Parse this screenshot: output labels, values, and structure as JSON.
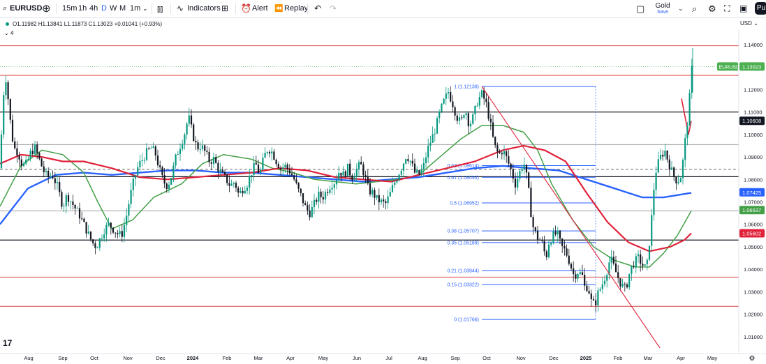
{
  "toolbar": {
    "symbol": "EURUSD",
    "intervals": [
      "15m",
      "1h",
      "4h",
      "D",
      "W",
      "M",
      "1m"
    ],
    "active_interval": "D",
    "indicators_label": "Indicators",
    "alert_label": "Alert",
    "replay_label": "Replay",
    "gold_label": "Gold",
    "save_label": "Save",
    "avatar_text": "Pu"
  },
  "legend": {
    "ohlc": "O1.11982 H1.13841 L1.11873 C1.13023 +0.01041 (+0.93%)",
    "indicator_count": "4",
    "currency": "USD"
  },
  "tv_logo": "17",
  "colors": {
    "up": "#089981",
    "down": "#131722",
    "ma_fast": "#131722",
    "ma_green": "#43a047",
    "ma_red": "#e0223a",
    "ma_blue": "#2962ff",
    "fib": "#2962ff",
    "support_red": "#e05a5a",
    "support_black": "#131722",
    "support_grey": "#9e9e9e",
    "trendline": "#e0223a",
    "price_tag": "#4caf50"
  },
  "chart_data": {
    "type": "candlestick",
    "symbol": "EURUSD",
    "timeframe": "1D",
    "ylim": [
      1.0025,
      1.1465
    ],
    "y_ticks": [
      "1.14000",
      "1.13000",
      "1.12000",
      "1.11000",
      "1.10000",
      "1.09000",
      "1.08000",
      "1.07000",
      "1.06000",
      "1.05000",
      "1.04000",
      "1.03000",
      "1.02000",
      "1.01000"
    ],
    "x_ticks": [
      "Aug",
      "Sep",
      "Oct",
      "Nov",
      "Dec",
      "2024",
      "Feb",
      "Mar",
      "Apr",
      "May",
      "Jun",
      "Jul",
      "Aug",
      "Sep",
      "Oct",
      "Nov",
      "Dec",
      "2025",
      "Feb",
      "Mar",
      "Apr",
      "May"
    ],
    "last_price": "1.13023",
    "last_label": "EURUSD",
    "price_tags": [
      {
        "value": 1.10608,
        "label": "1.10608",
        "color": "#131722"
      },
      {
        "value": 1.07425,
        "label": "1.07425",
        "color": "#2962ff"
      },
      {
        "value": 1.06637,
        "label": "1.06637",
        "color": "#43a047"
      },
      {
        "value": 1.05602,
        "label": "1.05602",
        "color": "#e0223a"
      }
    ],
    "horizontal_levels": [
      {
        "value": 1.1395,
        "style": "red"
      },
      {
        "value": 1.1263,
        "style": "red"
      },
      {
        "value": 1.11,
        "style": "black"
      },
      {
        "value": 1.0955,
        "style": "grey"
      },
      {
        "value": 1.0845,
        "style": "dashed"
      },
      {
        "value": 1.0812,
        "style": "black"
      },
      {
        "value": 1.066,
        "style": "grey"
      },
      {
        "value": 1.053,
        "style": "black"
      },
      {
        "value": 1.0365,
        "style": "red"
      },
      {
        "value": 1.0235,
        "style": "red"
      }
    ],
    "fibonacci": [
      {
        "label": "1 (1.12138)",
        "value": 1.12138
      },
      {
        "label": "0.62 (1.08614)",
        "value": 1.08614
      },
      {
        "label": "0.61 (1.08093)",
        "value": 1.08093
      },
      {
        "label": "0.5 (1.06952)",
        "value": 1.06952
      },
      {
        "label": "0.38 (1.05707)",
        "value": 1.05707
      },
      {
        "label": "0.35 (1.05189)",
        "value": 1.05189
      },
      {
        "label": "0.21 (1.03944)",
        "value": 1.03944
      },
      {
        "label": "0.15 (1.03322)",
        "value": 1.03322
      },
      {
        "label": "0 (1.01766)",
        "value": 1.01766
      }
    ],
    "price_path": [
      [
        0,
        1.085
      ],
      [
        2,
        1.1
      ],
      [
        5,
        1.118
      ],
      [
        8,
        1.126
      ],
      [
        12,
        1.115
      ],
      [
        16,
        1.102
      ],
      [
        20,
        1.094
      ],
      [
        26,
        1.092
      ],
      [
        32,
        1.086
      ],
      [
        38,
        1.087
      ],
      [
        44,
        1.092
      ],
      [
        50,
        1.094
      ],
      [
        56,
        1.089
      ],
      [
        62,
        1.084
      ],
      [
        68,
        1.081
      ],
      [
        75,
        1.082
      ],
      [
        82,
        1.077
      ],
      [
        90,
        1.068
      ],
      [
        96,
        1.073
      ],
      [
        100,
        1.071
      ],
      [
        108,
        1.067
      ],
      [
        114,
        1.064
      ],
      [
        120,
        1.06
      ],
      [
        126,
        1.056
      ],
      [
        132,
        1.052
      ],
      [
        138,
        1.05
      ],
      [
        144,
        1.054
      ],
      [
        150,
        1.058
      ],
      [
        156,
        1.06
      ],
      [
        162,
        1.058
      ],
      [
        168,
        1.056
      ],
      [
        174,
        1.055
      ],
      [
        180,
        1.062
      ],
      [
        186,
        1.072
      ],
      [
        192,
        1.08
      ],
      [
        198,
        1.086
      ],
      [
        204,
        1.089
      ],
      [
        210,
        1.092
      ],
      [
        216,
        1.094
      ],
      [
        222,
        1.092
      ],
      [
        228,
        1.085
      ],
      [
        234,
        1.079
      ],
      [
        240,
        1.077
      ],
      [
        246,
        1.082
      ],
      [
        252,
        1.09
      ],
      [
        258,
        1.095
      ],
      [
        264,
        1.1
      ],
      [
        270,
        1.108
      ],
      [
        276,
        1.1
      ],
      [
        282,
        1.094
      ],
      [
        288,
        1.095
      ],
      [
        294,
        1.092
      ],
      [
        300,
        1.088
      ],
      [
        306,
        1.089
      ],
      [
        312,
        1.085
      ],
      [
        318,
        1.082
      ],
      [
        324,
        1.08
      ],
      [
        330,
        1.077
      ],
      [
        336,
        1.079
      ],
      [
        342,
        1.073
      ],
      [
        348,
        1.076
      ],
      [
        354,
        1.078
      ],
      [
        360,
        1.083
      ],
      [
        366,
        1.087
      ],
      [
        372,
        1.082
      ],
      [
        378,
        1.09
      ],
      [
        384,
        1.094
      ],
      [
        390,
        1.092
      ],
      [
        396,
        1.088
      ],
      [
        402,
        1.085
      ],
      [
        408,
        1.086
      ],
      [
        414,
        1.084
      ],
      [
        420,
        1.081
      ],
      [
        426,
        1.076
      ],
      [
        432,
        1.072
      ],
      [
        438,
        1.067
      ],
      [
        444,
        1.065
      ],
      [
        450,
        1.069
      ],
      [
        456,
        1.073
      ],
      [
        462,
        1.072
      ],
      [
        468,
        1.075
      ],
      [
        474,
        1.078
      ],
      [
        480,
        1.079
      ],
      [
        486,
        1.084
      ],
      [
        492,
        1.082
      ],
      [
        498,
        1.085
      ],
      [
        504,
        1.081
      ],
      [
        510,
        1.084
      ],
      [
        516,
        1.087
      ],
      [
        522,
        1.082
      ],
      [
        528,
        1.075
      ],
      [
        534,
        1.074
      ],
      [
        540,
        1.071
      ],
      [
        546,
        1.07
      ],
      [
        552,
        1.069
      ],
      [
        558,
        1.073
      ],
      [
        564,
        1.078
      ],
      [
        570,
        1.082
      ],
      [
        576,
        1.086
      ],
      [
        582,
        1.091
      ],
      [
        588,
        1.088
      ],
      [
        594,
        1.083
      ],
      [
        600,
        1.082
      ],
      [
        606,
        1.085
      ],
      [
        612,
        1.093
      ],
      [
        618,
        1.098
      ],
      [
        624,
        1.103
      ],
      [
        630,
        1.11
      ],
      [
        636,
        1.115
      ],
      [
        642,
        1.119
      ],
      [
        648,
        1.114
      ],
      [
        654,
        1.108
      ],
      [
        660,
        1.105
      ],
      [
        666,
        1.112
      ],
      [
        672,
        1.104
      ],
      [
        678,
        1.108
      ],
      [
        684,
        1.115
      ],
      [
        690,
        1.118
      ],
      [
        696,
        1.114
      ],
      [
        702,
        1.105
      ],
      [
        708,
        1.095
      ],
      [
        714,
        1.091
      ],
      [
        720,
        1.093
      ],
      [
        726,
        1.089
      ],
      [
        732,
        1.084
      ],
      [
        738,
        1.078
      ],
      [
        744,
        1.083
      ],
      [
        750,
        1.088
      ],
      [
        756,
        1.078
      ],
      [
        760,
        1.066
      ],
      [
        764,
        1.058
      ],
      [
        770,
        1.054
      ],
      [
        776,
        1.052
      ],
      [
        782,
        1.045
      ],
      [
        786,
        1.052
      ],
      [
        792,
        1.055
      ],
      [
        798,
        1.056
      ],
      [
        804,
        1.05
      ],
      [
        810,
        1.048
      ],
      [
        816,
        1.043
      ],
      [
        822,
        1.037
      ],
      [
        828,
        1.039
      ],
      [
        834,
        1.037
      ],
      [
        838,
        1.031
      ],
      [
        842,
        1.033
      ],
      [
        846,
        1.026
      ],
      [
        852,
        1.024
      ],
      [
        856,
        1.029
      ],
      [
        862,
        1.033
      ],
      [
        868,
        1.038
      ],
      [
        874,
        1.045
      ],
      [
        878,
        1.042
      ],
      [
        884,
        1.037
      ],
      [
        890,
        1.033
      ],
      [
        896,
        1.031
      ],
      [
        902,
        1.039
      ],
      [
        908,
        1.043
      ],
      [
        914,
        1.045
      ],
      [
        920,
        1.042
      ],
      [
        926,
        1.04
      ],
      [
        932,
        1.058
      ],
      [
        936,
        1.075
      ],
      [
        940,
        1.085
      ],
      [
        946,
        1.09
      ],
      [
        952,
        1.093
      ],
      [
        958,
        1.087
      ],
      [
        964,
        1.082
      ],
      [
        970,
        1.079
      ],
      [
        976,
        1.082
      ],
      [
        980,
        1.094
      ],
      [
        985,
        1.107
      ],
      [
        988,
        1.118
      ],
      [
        991,
        1.13
      ]
    ],
    "ma_green_path": [
      [
        0,
        1.068
      ],
      [
        30,
        1.086
      ],
      [
        60,
        1.093
      ],
      [
        90,
        1.091
      ],
      [
        120,
        1.083
      ],
      [
        140,
        1.07
      ],
      [
        160,
        1.058
      ],
      [
        190,
        1.062
      ],
      [
        220,
        1.072
      ],
      [
        260,
        1.078
      ],
      [
        290,
        1.087
      ],
      [
        320,
        1.091
      ],
      [
        360,
        1.089
      ],
      [
        390,
        1.085
      ],
      [
        420,
        1.083
      ],
      [
        450,
        1.08
      ],
      [
        480,
        1.079
      ],
      [
        510,
        1.078
      ],
      [
        540,
        1.079
      ],
      [
        570,
        1.08
      ],
      [
        600,
        1.082
      ],
      [
        630,
        1.09
      ],
      [
        660,
        1.098
      ],
      [
        690,
        1.104
      ],
      [
        720,
        1.104
      ],
      [
        750,
        1.101
      ],
      [
        770,
        1.093
      ],
      [
        790,
        1.078
      ],
      [
        820,
        1.062
      ],
      [
        850,
        1.05
      ],
      [
        880,
        1.044
      ],
      [
        910,
        1.041
      ],
      [
        930,
        1.041
      ],
      [
        950,
        1.047
      ],
      [
        970,
        1.055
      ],
      [
        990,
        1.066
      ]
    ],
    "ma_red_path": [
      [
        0,
        1.087
      ],
      [
        30,
        1.091
      ],
      [
        60,
        1.09
      ],
      [
        90,
        1.088
      ],
      [
        120,
        1.088
      ],
      [
        160,
        1.085
      ],
      [
        200,
        1.081
      ],
      [
        240,
        1.08
      ],
      [
        280,
        1.081
      ],
      [
        320,
        1.082
      ],
      [
        360,
        1.083
      ],
      [
        400,
        1.085
      ],
      [
        440,
        1.084
      ],
      [
        480,
        1.081
      ],
      [
        520,
        1.08
      ],
      [
        560,
        1.079
      ],
      [
        600,
        1.082
      ],
      [
        640,
        1.085
      ],
      [
        680,
        1.088
      ],
      [
        720,
        1.093
      ],
      [
        750,
        1.095
      ],
      [
        780,
        1.093
      ],
      [
        810,
        1.088
      ],
      [
        840,
        1.074
      ],
      [
        870,
        1.061
      ],
      [
        900,
        1.052
      ],
      [
        930,
        1.048
      ],
      [
        960,
        1.05
      ],
      [
        980,
        1.053
      ],
      [
        990,
        1.056
      ]
    ],
    "ma_blue_path": [
      [
        0,
        1.06
      ],
      [
        40,
        1.076
      ],
      [
        80,
        1.082
      ],
      [
        120,
        1.083
      ],
      [
        160,
        1.082
      ],
      [
        200,
        1.083
      ],
      [
        240,
        1.084
      ],
      [
        280,
        1.084
      ],
      [
        320,
        1.083
      ],
      [
        360,
        1.083
      ],
      [
        400,
        1.082
      ],
      [
        440,
        1.081
      ],
      [
        480,
        1.08
      ],
      [
        520,
        1.079
      ],
      [
        560,
        1.08
      ],
      [
        600,
        1.081
      ],
      [
        640,
        1.083
      ],
      [
        680,
        1.085
      ],
      [
        720,
        1.086
      ],
      [
        760,
        1.085
      ],
      [
        800,
        1.084
      ],
      [
        840,
        1.08
      ],
      [
        880,
        1.076
      ],
      [
        920,
        1.072
      ],
      [
        950,
        1.072
      ],
      [
        970,
        1.073
      ],
      [
        990,
        1.074
      ]
    ],
    "ma_short_red_path": [
      [
        976,
        1.116
      ],
      [
        981,
        1.108
      ],
      [
        986,
        1.1
      ],
      [
        990,
        1.106
      ]
    ],
    "trendline": {
      "from": [
        690,
        1.12138
      ],
      "to": [
        945,
        1.005
      ]
    }
  }
}
